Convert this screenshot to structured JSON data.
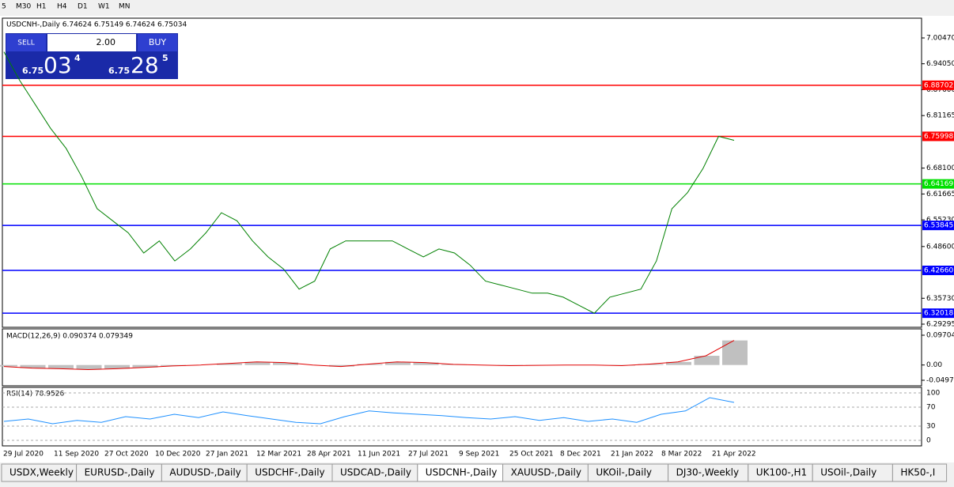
{
  "toolbar": {
    "timeframes": [
      "5",
      "M30",
      "H1",
      "H4",
      "D1",
      "W1",
      "MN"
    ]
  },
  "chart": {
    "header": "USDCNH-,Daily  6.74624 6.75149 6.74624 6.75034",
    "trade_panel": {
      "sell": "SELL",
      "lot": "2.00",
      "buy": "BUY",
      "bid_big": "6.75",
      "bid_pips": "03",
      "bid_frac": "4",
      "ask_big": "6.75",
      "ask_pips": "28",
      "ask_frac": "5"
    },
    "price_ticks": [
      {
        "value": 7.0047,
        "label": "7.00470"
      },
      {
        "value": 6.9405,
        "label": "6.94050"
      },
      {
        "value": 6.876,
        "label": "6.87600"
      },
      {
        "value": 6.81165,
        "label": "6.81165"
      },
      {
        "value": 6.681,
        "label": "6.68100"
      },
      {
        "value": 6.61665,
        "label": "6.61665"
      },
      {
        "value": 6.5523,
        "label": "6.55230"
      },
      {
        "value": 6.486,
        "label": "6.48600"
      },
      {
        "value": 6.3573,
        "label": "6.35730"
      },
      {
        "value": 6.29295,
        "label": "6.29295"
      }
    ],
    "levels": [
      {
        "value": 6.88702,
        "label": "6.88702",
        "color": "#ff0000"
      },
      {
        "value": 6.75998,
        "label": "6.75998",
        "color": "#ff0000"
      },
      {
        "value": 6.64169,
        "label": "6.64169",
        "color": "#00e000"
      },
      {
        "value": 6.53845,
        "label": "6.53845",
        "color": "#0000ff"
      },
      {
        "value": 6.4266,
        "label": "6.42660",
        "color": "#0000ff"
      },
      {
        "value": 6.32018,
        "label": "6.32018",
        "color": "#0000ff"
      }
    ],
    "closes": [
      6.97,
      6.9,
      6.84,
      6.78,
      6.73,
      6.66,
      6.58,
      6.55,
      6.52,
      6.47,
      6.5,
      6.45,
      6.48,
      6.52,
      6.57,
      6.55,
      6.5,
      6.46,
      6.43,
      6.38,
      6.4,
      6.48,
      6.5,
      6.5,
      6.5,
      6.5,
      6.48,
      6.46,
      6.48,
      6.47,
      6.44,
      6.4,
      6.39,
      6.38,
      6.37,
      6.37,
      6.36,
      6.34,
      6.32,
      6.36,
      6.37,
      6.38,
      6.45,
      6.58,
      6.62,
      6.68,
      6.76,
      6.75
    ],
    "dates": [
      "29 Jul 2020",
      "11 Sep 2020",
      "27 Oct 2020",
      "10 Dec 2020",
      "27 Jan 2021",
      "12 Mar 2021",
      "28 Apr 2021",
      "11 Jun 2021",
      "27 Jul 2021",
      "9 Sep 2021",
      "25 Oct 2021",
      "8 Dec 2021",
      "21 Jan 2022",
      "8 Mar 2022",
      "21 Apr 2022"
    ]
  },
  "macd": {
    "header": "MACD(12,26,9) 0.090374 0.079349",
    "ticks": [
      {
        "value": 0.097045,
        "label": "0.097045"
      },
      {
        "value": 0,
        "label": "0.00"
      },
      {
        "value": -0.04972,
        "label": "-0.04972"
      }
    ],
    "values": [
      -0.005,
      -0.01,
      -0.012,
      -0.015,
      -0.012,
      -0.008,
      -0.003,
      0,
      0.005,
      0.01,
      0.008,
      0,
      -0.005,
      0.003,
      0.01,
      0.008,
      0.002,
      0,
      -0.002,
      -0.001,
      0,
      0,
      -0.002,
      0.003,
      0.01,
      0.03,
      0.08
    ]
  },
  "rsi": {
    "header": "RSI(14) 78.9526",
    "ticks": [
      100,
      70,
      30,
      0
    ],
    "values": [
      40,
      45,
      35,
      42,
      38,
      50,
      45,
      55,
      48,
      60,
      52,
      45,
      38,
      35,
      50,
      62,
      58,
      55,
      52,
      48,
      45,
      50,
      42,
      48,
      40,
      45,
      38,
      55,
      62,
      90,
      80
    ]
  },
  "tabs": [
    "USDX,Weekly",
    "EURUSD-,Daily",
    "AUDUSD-,Daily",
    "USDCHF-,Daily",
    "USDCAD-,Daily",
    "USDCNH-,Daily",
    "XAUUSD-,Daily",
    "UKOil-,Daily",
    "DJ30-,Weekly",
    "UK100-,H1",
    "USOil-,Daily",
    "HK50-,I"
  ]
}
